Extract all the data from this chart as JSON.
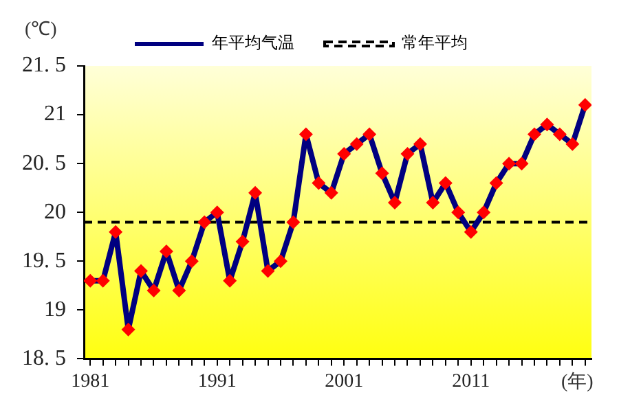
{
  "chart_data": {
    "type": "line",
    "ylabel": "(℃)",
    "xlabel": "(年)",
    "x": [
      1981,
      1982,
      1983,
      1984,
      1985,
      1986,
      1987,
      1988,
      1989,
      1990,
      1991,
      1992,
      1993,
      1994,
      1995,
      1996,
      1997,
      1998,
      1999,
      2000,
      2001,
      2002,
      2003,
      2004,
      2005,
      2006,
      2007,
      2008,
      2009,
      2010,
      2011,
      2012,
      2013,
      2014,
      2015,
      2016,
      2017,
      2018,
      2019,
      2020
    ],
    "series": [
      {
        "name": "年平均气温",
        "color": "#000080",
        "values": [
          19.3,
          19.3,
          19.8,
          18.8,
          19.4,
          19.2,
          19.6,
          19.2,
          19.5,
          19.9,
          20.0,
          19.3,
          19.7,
          20.2,
          19.4,
          19.5,
          19.9,
          20.8,
          20.3,
          20.2,
          20.6,
          20.7,
          20.8,
          20.4,
          20.1,
          20.6,
          20.7,
          20.1,
          20.3,
          20.0,
          19.8,
          20.0,
          20.3,
          20.5,
          20.5,
          20.8,
          20.9,
          20.8,
          20.7,
          21.1
        ]
      }
    ],
    "marker": "diamond",
    "ref_lines": [
      {
        "axis": "y",
        "value": 19.9,
        "label": "常年平均",
        "color": "#000000",
        "line_style": "dashed"
      }
    ],
    "xlim": [
      1980.5,
      2020.5
    ],
    "xticks": [
      {
        "value": 1981,
        "label": "1981"
      },
      {
        "value": 1982,
        "label": null
      },
      {
        "value": 1983,
        "label": null
      },
      {
        "value": 1984,
        "label": null
      },
      {
        "value": 1985,
        "label": null
      },
      {
        "value": 1986,
        "label": null
      },
      {
        "value": 1987,
        "label": null
      },
      {
        "value": 1988,
        "label": null
      },
      {
        "value": 1989,
        "label": null
      },
      {
        "value": 1990,
        "label": null
      },
      {
        "value": 1991,
        "label": "1991"
      },
      {
        "value": 1992,
        "label": null
      },
      {
        "value": 1993,
        "label": null
      },
      {
        "value": 1994,
        "label": null
      },
      {
        "value": 1995,
        "label": null
      },
      {
        "value": 1996,
        "label": null
      },
      {
        "value": 1997,
        "label": null
      },
      {
        "value": 1998,
        "label": null
      },
      {
        "value": 1999,
        "label": null
      },
      {
        "value": 2000,
        "label": null
      },
      {
        "value": 2001,
        "label": "2001"
      },
      {
        "value": 2002,
        "label": null
      },
      {
        "value": 2003,
        "label": null
      },
      {
        "value": 2004,
        "label": null
      },
      {
        "value": 2005,
        "label": null
      },
      {
        "value": 2006,
        "label": null
      },
      {
        "value": 2007,
        "label": null
      },
      {
        "value": 2008,
        "label": null
      },
      {
        "value": 2009,
        "label": null
      },
      {
        "value": 2010,
        "label": null
      },
      {
        "value": 2011,
        "label": "2011"
      },
      {
        "value": 2012,
        "label": null
      },
      {
        "value": 2013,
        "label": null
      },
      {
        "value": 2014,
        "label": null
      },
      {
        "value": 2015,
        "label": null
      },
      {
        "value": 2016,
        "label": null
      },
      {
        "value": 2017,
        "label": null
      },
      {
        "value": 2018,
        "label": null
      },
      {
        "value": 2019,
        "label": null
      },
      {
        "value": 2020,
        "label": null
      }
    ],
    "ylim": [
      18.5,
      21.5
    ],
    "yticks": [
      {
        "value": 18.5,
        "label": "18. 5"
      },
      {
        "value": 19,
        "label": "19"
      },
      {
        "value": 19.5,
        "label": "19. 5"
      },
      {
        "value": 20,
        "label": "20"
      },
      {
        "value": 20.5,
        "label": "20. 5"
      },
      {
        "value": 21,
        "label": "21"
      },
      {
        "value": 21.5,
        "label": "21. 5"
      }
    ],
    "grid": false,
    "legend": "top"
  }
}
